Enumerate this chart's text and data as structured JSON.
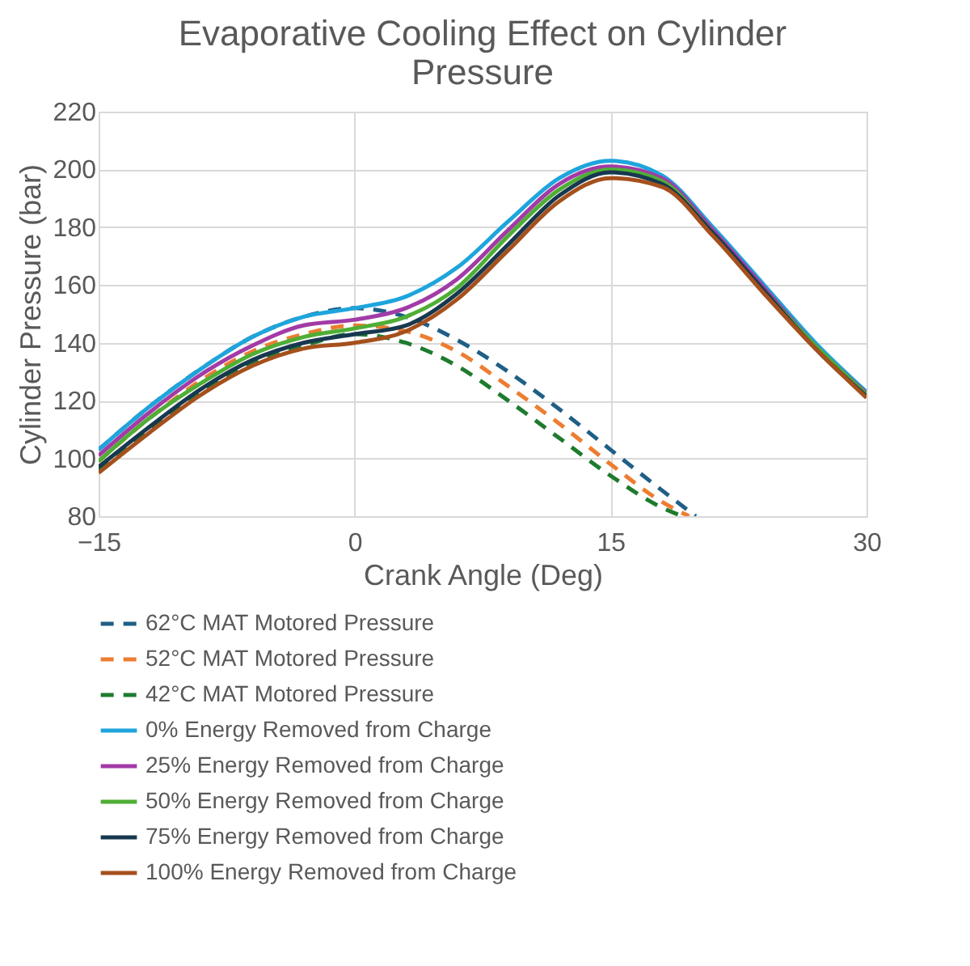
{
  "chart_data": {
    "type": "line",
    "title": "Evaporative Cooling Effect on Cylinder Pressure",
    "xlabel": "Crank Angle (Deg)",
    "ylabel": "Cylinder Pressure (bar)",
    "xlim": [
      -15,
      30
    ],
    "xticks": [
      -15,
      0,
      15,
      30
    ],
    "ylim": [
      80,
      220
    ],
    "yticks": [
      80,
      100,
      120,
      140,
      160,
      180,
      200,
      220
    ],
    "grid": true,
    "legend": "bottom",
    "series": [
      {
        "name": "62°C MAT Motored Pressure",
        "color": "#1f5f86",
        "line_style": "dashed",
        "x": [
          -15,
          -12,
          -9,
          -6,
          -3,
          0,
          3,
          6,
          9,
          12,
          15,
          18,
          20
        ],
        "values": [
          103,
          118,
          131,
          142,
          149,
          152,
          149,
          141,
          130,
          117,
          103,
          89,
          80
        ]
      },
      {
        "name": "52°C MAT Motored Pressure",
        "color": "#ed7d31",
        "line_style": "dashed",
        "x": [
          -15,
          -12,
          -9,
          -6,
          -3,
          0,
          3,
          6,
          9,
          12,
          15,
          18,
          19.6
        ],
        "values": [
          99,
          114,
          127,
          137,
          143,
          146,
          144,
          137,
          125,
          112,
          98,
          85,
          80
        ]
      },
      {
        "name": "42°C MAT Motored Pressure",
        "color": "#1e7b2e",
        "line_style": "dashed",
        "x": [
          -15,
          -12,
          -9,
          -6,
          -3,
          0,
          3,
          6,
          9,
          12,
          15,
          18,
          19.2
        ],
        "values": [
          96,
          110,
          123,
          133,
          139,
          143,
          140,
          132,
          120,
          107,
          94,
          83,
          80
        ]
      },
      {
        "name": "0% Energy Removed from Charge",
        "color": "#1ea5dc",
        "line_style": "solid",
        "x": [
          -15,
          -12,
          -9,
          -6,
          -3,
          0,
          3,
          6,
          9,
          12,
          15,
          18,
          21,
          24,
          27,
          30
        ],
        "values": [
          103,
          118,
          131,
          142,
          149,
          152,
          156,
          166,
          182,
          197,
          203,
          198,
          180,
          160,
          140,
          123
        ]
      },
      {
        "name": "25% Energy Removed from Charge",
        "color": "#a23ba6",
        "line_style": "solid",
        "x": [
          -15,
          -12,
          -9,
          -6,
          -3,
          0,
          3,
          6,
          9,
          12,
          15,
          18,
          21,
          24,
          27,
          30
        ],
        "values": [
          101,
          116,
          129,
          139,
          146,
          148,
          152,
          162,
          179,
          195,
          201,
          197,
          179,
          159,
          139,
          122.5
        ]
      },
      {
        "name": "50% Energy Removed from Charge",
        "color": "#4fae35",
        "line_style": "solid",
        "x": [
          -15,
          -12,
          -9,
          -6,
          -3,
          0,
          3,
          6,
          9,
          12,
          15,
          18,
          21,
          24,
          27,
          30
        ],
        "values": [
          99,
          114,
          126,
          136,
          142,
          145,
          149,
          159,
          177,
          193,
          200,
          196,
          178,
          158,
          139,
          122
        ]
      },
      {
        "name": "75% Energy Removed from Charge",
        "color": "#17384f",
        "line_style": "solid",
        "x": [
          -15,
          -12,
          -9,
          -6,
          -3,
          0,
          3,
          6,
          9,
          12,
          15,
          18,
          21,
          24,
          27,
          30
        ],
        "values": [
          97,
          111,
          124,
          134,
          140,
          143,
          146,
          157,
          174,
          191,
          199,
          195,
          178,
          158,
          138,
          121.5
        ]
      },
      {
        "name": "100% Energy Removed from Charge",
        "color": "#a5501c",
        "line_style": "solid",
        "x": [
          -15,
          -12,
          -9,
          -6,
          -3,
          0,
          3,
          6,
          9,
          12,
          15,
          18,
          21,
          24,
          27,
          30
        ],
        "values": [
          95,
          109,
          122,
          132,
          138,
          140,
          144,
          155,
          172,
          189,
          197,
          194,
          177,
          157,
          138,
          121
        ]
      }
    ]
  }
}
